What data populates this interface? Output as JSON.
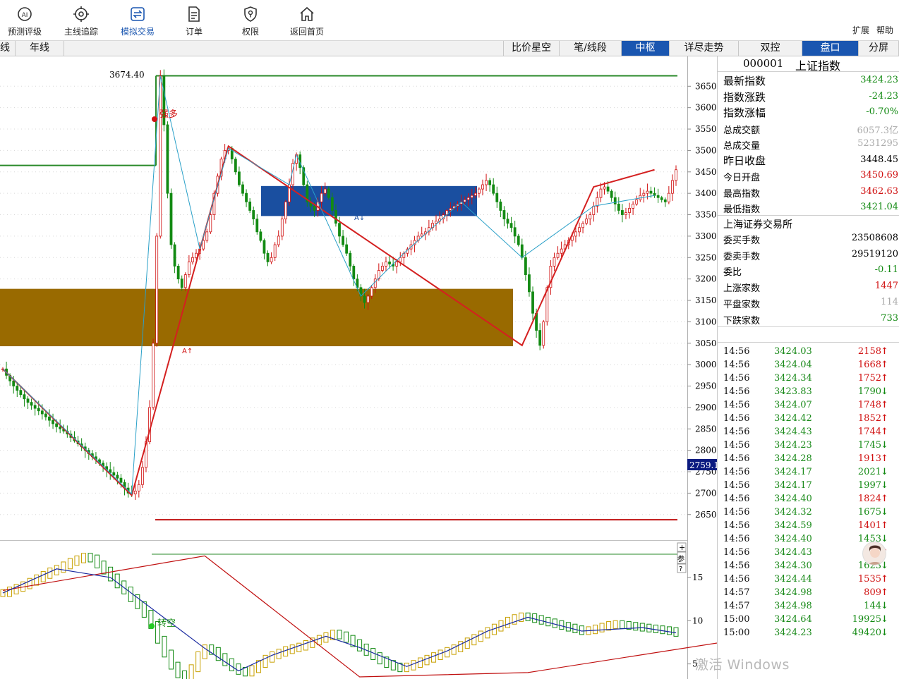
{
  "toolbar": {
    "buttons": [
      {
        "label": "预测评级",
        "icon": "ai-icon",
        "active": false
      },
      {
        "label": "主线追踪",
        "icon": "target-icon",
        "active": false
      },
      {
        "label": "模拟交易",
        "icon": "exchange-icon",
        "active": true
      },
      {
        "label": "订单",
        "icon": "document-icon",
        "active": false
      },
      {
        "label": "权限",
        "icon": "shield-icon",
        "active": false
      },
      {
        "label": "返回首页",
        "icon": "home-icon",
        "active": false
      }
    ],
    "expand_label": "扩展",
    "help_label": "帮助"
  },
  "tabs": {
    "left": [
      {
        "label": "线"
      },
      {
        "label": "年线"
      }
    ],
    "right": [
      {
        "label": "比价星空",
        "active": false
      },
      {
        "label": "笔/线段",
        "active": false
      },
      {
        "label": "中枢",
        "active": true
      },
      {
        "label": "详尽走势",
        "active": false
      },
      {
        "label": "双控",
        "active": false
      },
      {
        "label": "盘口",
        "active": true
      },
      {
        "label": "分屏",
        "active": false
      }
    ]
  },
  "chart_labels": {
    "high_label": "3674.40",
    "strong_long": "强多",
    "turn_short": "转空",
    "cursor_price": "2759.1",
    "side_buttons": [
      "+",
      "参",
      "?"
    ]
  },
  "colors": {
    "up": "#d01010",
    "down": "#138a13",
    "pivot_blue": "#1a4fa0",
    "pivot_brown": "#996a00",
    "stroke_red": "#d42020",
    "stroke_cyan": "#2aa0c8"
  },
  "chart_data": [
    {
      "type": "candlestick",
      "title": "",
      "y_ticks": [
        3650,
        3600,
        3550,
        3500,
        3450,
        3400,
        3350,
        3300,
        3250,
        3200,
        3150,
        3100,
        3050,
        3000,
        2950,
        2900,
        2850,
        2800,
        2750,
        2700,
        2650
      ],
      "ylim": [
        2620,
        3690
      ],
      "levels": {
        "green_high": 3674.4,
        "green_mid": 3465,
        "red_low": 2638
      },
      "pivot_zones": [
        {
          "name": "blue",
          "top": 3417,
          "bottom": 3347
        },
        {
          "name": "brown",
          "top": 3177,
          "bottom": 3043
        }
      ],
      "stroke_points": [
        {
          "i": 0,
          "v": 2990
        },
        {
          "i": 36,
          "v": 2695
        },
        {
          "i": 63,
          "v": 3510
        },
        {
          "i": 145,
          "v": 3045
        },
        {
          "i": 165,
          "v": 3415
        },
        {
          "i": 182,
          "v": 3455
        }
      ],
      "closes": [
        2990,
        2975,
        2962,
        2950,
        2940,
        2930,
        2920,
        2912,
        2905,
        2898,
        2892,
        2885,
        2878,
        2870,
        2862,
        2855,
        2850,
        2845,
        2838,
        2830,
        2822,
        2815,
        2808,
        2800,
        2792,
        2785,
        2778,
        2770,
        2762,
        2755,
        2748,
        2742,
        2735,
        2725,
        2712,
        2700,
        2698,
        2705,
        2720,
        2760,
        2820,
        2900,
        3050,
        3300,
        3674,
        3560,
        3400,
        3280,
        3230,
        3200,
        3180,
        3210,
        3240,
        3250,
        3260,
        3270,
        3290,
        3310,
        3350,
        3400,
        3440,
        3480,
        3500,
        3505,
        3480,
        3450,
        3420,
        3400,
        3380,
        3360,
        3340,
        3310,
        3290,
        3260,
        3240,
        3250,
        3280,
        3300,
        3340,
        3380,
        3420,
        3470,
        3490,
        3460,
        3420,
        3380,
        3370,
        3360,
        3380,
        3400,
        3410,
        3390,
        3360,
        3330,
        3300,
        3280,
        3260,
        3230,
        3200,
        3180,
        3160,
        3145,
        3160,
        3180,
        3200,
        3220,
        3230,
        3240,
        3235,
        3230,
        3240,
        3250,
        3260,
        3270,
        3280,
        3290,
        3300,
        3305,
        3310,
        3320,
        3330,
        3335,
        3340,
        3350,
        3360,
        3365,
        3370,
        3375,
        3380,
        3385,
        3390,
        3395,
        3400,
        3410,
        3420,
        3430,
        3420,
        3400,
        3380,
        3360,
        3340,
        3330,
        3320,
        3300,
        3280,
        3250,
        3210,
        3170,
        3120,
        3080,
        3045,
        3100,
        3180,
        3230,
        3250,
        3260,
        3270,
        3280,
        3290,
        3300,
        3310,
        3320,
        3330,
        3340,
        3350,
        3370,
        3390,
        3410,
        3415,
        3405,
        3390,
        3375,
        3360,
        3350,
        3355,
        3365,
        3375,
        3385,
        3395,
        3400,
        3405,
        3400,
        3395,
        3390,
        3385,
        3380,
        3400,
        3430,
        3455
      ]
    },
    {
      "type": "candlestick",
      "title": "",
      "y_ticks": [
        15.0,
        10.0,
        5.0
      ],
      "ylim": [
        3.5,
        19.0
      ],
      "stroke_points": [
        {
          "i": 0,
          "v": 13.5
        },
        {
          "i": 30,
          "v": 17.5
        },
        {
          "i": 53,
          "v": 3.5
        },
        {
          "i": 78,
          "v": 4.0
        },
        {
          "i": 115,
          "v": 8.5
        },
        {
          "i": 147,
          "v": 4.5
        },
        {
          "i": 180,
          "v": 10.5
        },
        {
          "i": 230,
          "v": 8.5
        }
      ],
      "closes": [
        13.2,
        13.5,
        13.8,
        14.1,
        14.5,
        14.9,
        15.3,
        15.7,
        16.0,
        16.4,
        16.8,
        17.1,
        17.4,
        17.2,
        16.5,
        15.8,
        15.0,
        14.2,
        13.5,
        12.6,
        11.8,
        10.8,
        9.5,
        7.8,
        6.2,
        4.8,
        3.8,
        3.6,
        4.5,
        6.0,
        6.8,
        6.5,
        5.8,
        5.2,
        4.6,
        4.2,
        4.0,
        4.4,
        5.0,
        5.6,
        6.0,
        6.3,
        6.6,
        6.8,
        7.0,
        7.3,
        7.6,
        7.9,
        8.2,
        8.5,
        8.3,
        7.9,
        7.4,
        6.9,
        6.4,
        5.9,
        5.4,
        5.0,
        4.7,
        4.5,
        4.7,
        5.0,
        5.3,
        5.6,
        5.9,
        6.2,
        6.5,
        6.8,
        7.2,
        7.6,
        8.0,
        8.4,
        8.8,
        9.2,
        9.6,
        10.0,
        10.3,
        10.5,
        10.4,
        10.2,
        10.0,
        9.8,
        9.6,
        9.4,
        9.2,
        9.0,
        8.8,
        8.9,
        9.1,
        9.3,
        9.5,
        9.6,
        9.5,
        9.4,
        9.3,
        9.2,
        9.1,
        9.0,
        8.9,
        8.8,
        8.6
      ]
    }
  ],
  "quote": {
    "code": "000001",
    "name": "上证指数",
    "rows": [
      {
        "label": "最新指数",
        "value": "3424.23",
        "color": "down",
        "big": true
      },
      {
        "label": "指数涨跌",
        "value": "-24.23",
        "color": "down",
        "big": true
      },
      {
        "label": "指数涨幅",
        "value": "-0.70%",
        "color": "down",
        "big": true
      },
      {
        "label": "总成交额",
        "value": "6057.3亿",
        "color": "grey",
        "big": false
      },
      {
        "label": "总成交量",
        "value": "5231295",
        "color": "grey",
        "big": false
      },
      {
        "label": "昨日收盘",
        "value": "3448.45",
        "color": "blk",
        "big": true
      },
      {
        "label": "今日开盘",
        "value": "3450.69",
        "color": "up",
        "big": false
      },
      {
        "label": "最高指数",
        "value": "3462.63",
        "color": "up",
        "big": false
      },
      {
        "label": "最低指数",
        "value": "3421.04",
        "color": "down",
        "big": false
      }
    ],
    "exchange_label": "上海证券交易所",
    "rows2": [
      {
        "label": "委买手数",
        "value": "23508608",
        "color": "blk"
      },
      {
        "label": "委卖手数",
        "value": "29519120",
        "color": "blk"
      },
      {
        "label": "委比",
        "value": "-0.11",
        "color": "down"
      },
      {
        "label": "上涨家数",
        "value": "1447",
        "color": "up"
      },
      {
        "label": "平盘家数",
        "value": "114",
        "color": "grey"
      },
      {
        "label": "下跌家数",
        "value": "733",
        "color": "down"
      }
    ]
  },
  "ticks": [
    {
      "time": "14:56",
      "price": "3424.03",
      "vol": "2158",
      "dir": "up"
    },
    {
      "time": "14:56",
      "price": "3424.04",
      "vol": "1668",
      "dir": "up"
    },
    {
      "time": "14:56",
      "price": "3424.34",
      "vol": "1752",
      "dir": "up"
    },
    {
      "time": "14:56",
      "price": "3423.83",
      "vol": "1790",
      "dir": "down"
    },
    {
      "time": "14:56",
      "price": "3424.07",
      "vol": "1748",
      "dir": "up"
    },
    {
      "time": "14:56",
      "price": "3424.42",
      "vol": "1852",
      "dir": "up"
    },
    {
      "time": "14:56",
      "price": "3424.43",
      "vol": "1744",
      "dir": "up"
    },
    {
      "time": "14:56",
      "price": "3424.23",
      "vol": "1745",
      "dir": "down"
    },
    {
      "time": "14:56",
      "price": "3424.28",
      "vol": "1913",
      "dir": "up"
    },
    {
      "time": "14:56",
      "price": "3424.17",
      "vol": "2021",
      "dir": "down"
    },
    {
      "time": "14:56",
      "price": "3424.17",
      "vol": "1997",
      "dir": "down"
    },
    {
      "time": "14:56",
      "price": "3424.40",
      "vol": "1824",
      "dir": "up"
    },
    {
      "time": "14:56",
      "price": "3424.32",
      "vol": "1675",
      "dir": "down"
    },
    {
      "time": "14:56",
      "price": "3424.59",
      "vol": "1401",
      "dir": "up"
    },
    {
      "time": "14:56",
      "price": "3424.40",
      "vol": "1453",
      "dir": "down"
    },
    {
      "time": "14:56",
      "price": "3424.43",
      "vol": "",
      "dir": "up"
    },
    {
      "time": "14:56",
      "price": "3424.30",
      "vol": "1623",
      "dir": "down"
    },
    {
      "time": "14:56",
      "price": "3424.44",
      "vol": "1535",
      "dir": "up"
    },
    {
      "time": "14:57",
      "price": "3424.98",
      "vol": "809",
      "dir": "up"
    },
    {
      "time": "14:57",
      "price": "3424.98",
      "vol": "144",
      "dir": "down"
    },
    {
      "time": "15:00",
      "price": "3424.64",
      "vol": "19925",
      "dir": "down"
    },
    {
      "time": "15:00",
      "price": "3424.23",
      "vol": "49420",
      "dir": "down"
    }
  ],
  "watermark": "激活 Windows"
}
